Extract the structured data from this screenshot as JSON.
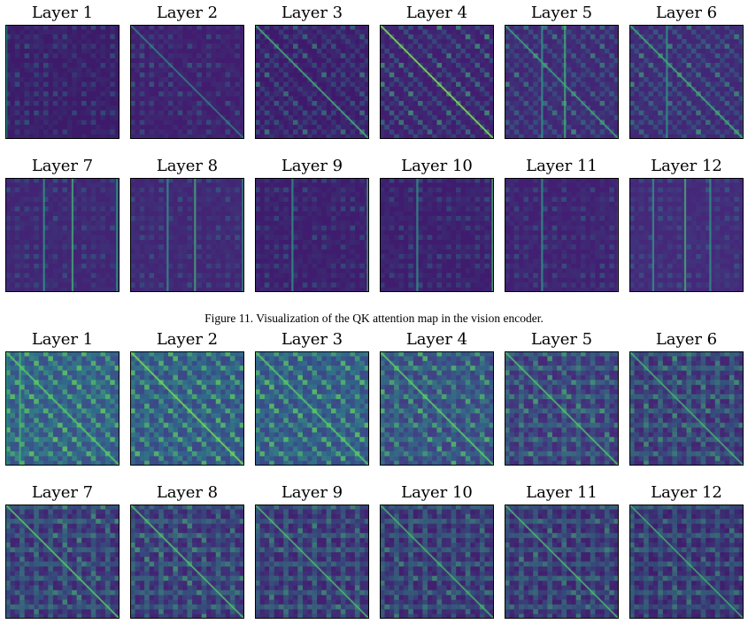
{
  "figure_top": {
    "rows": [
      [
        {
          "label": "Layer 1",
          "style": "speckle",
          "bg": "#3d1a6a",
          "diag": 0.0,
          "stripe": 0.05,
          "cols": [
            0.0
          ]
        },
        {
          "label": "Layer 2",
          "style": "speckle",
          "bg": "#421c6f",
          "diag": 0.25,
          "stripe": 0.1,
          "cols": []
        },
        {
          "label": "Layer 3",
          "style": "speckle",
          "bg": "#3f1a6c",
          "diag": 0.55,
          "stripe": 0.4,
          "cols": []
        },
        {
          "label": "Layer 4",
          "style": "speckle",
          "bg": "#421d70",
          "diag": 0.9,
          "stripe": 0.55,
          "cols": []
        },
        {
          "label": "Layer 5",
          "style": "speckle",
          "bg": "#432575",
          "diag": 0.45,
          "stripe": 0.5,
          "cols": [
            0.32,
            0.52
          ]
        },
        {
          "label": "Layer 6",
          "style": "speckle",
          "bg": "#432676",
          "diag": 0.5,
          "stripe": 0.55,
          "cols": [
            0.32,
            0.99
          ]
        }
      ],
      [
        {
          "label": "Layer 7",
          "style": "speckle",
          "bg": "#422374",
          "diag": 0.0,
          "stripe": 0.0,
          "cols": [
            0.33,
            0.58,
            0.97
          ]
        },
        {
          "label": "Layer 8",
          "style": "speckle",
          "bg": "#432475",
          "diag": 0.0,
          "stripe": 0.0,
          "cols": [
            0.32,
            0.56,
            0.98
          ]
        },
        {
          "label": "Layer 9",
          "style": "speckle",
          "bg": "#3f1c6e",
          "diag": 0.0,
          "stripe": 0.0,
          "cols": [
            0.32,
            0.98
          ]
        },
        {
          "label": "Layer 10",
          "style": "speckle",
          "bg": "#3f1c6e",
          "diag": 0.0,
          "stripe": 0.0,
          "cols": [
            0.32,
            0.98
          ]
        },
        {
          "label": "Layer 11",
          "style": "speckle",
          "bg": "#421f72",
          "diag": 0.0,
          "stripe": 0.0,
          "cols": [
            0.32,
            0.99
          ]
        },
        {
          "label": "Layer 12",
          "style": "speckle",
          "bg": "#46287a",
          "diag": 0.0,
          "stripe": 0.0,
          "cols": [
            0.2,
            0.48,
            0.7
          ]
        }
      ]
    ]
  },
  "caption": "Figure 11. Visualization of the QK attention map in the vision encoder.",
  "figure_bottom": {
    "rows": [
      [
        {
          "label": "Layer 1",
          "style": "block",
          "bg": "#3d4f8a",
          "diag": 0.7,
          "stripe": 0.6,
          "cols": [
            0.0,
            0.12
          ]
        },
        {
          "label": "Layer 2",
          "style": "block",
          "bg": "#3c4888",
          "diag": 0.85,
          "stripe": 0.55,
          "cols": []
        },
        {
          "label": "Layer 3",
          "style": "block",
          "bg": "#3c4989",
          "diag": 0.7,
          "stripe": 0.55,
          "cols": []
        },
        {
          "label": "Layer 4",
          "style": "block",
          "bg": "#433e84",
          "diag": 0.75,
          "stripe": 0.45,
          "cols": []
        },
        {
          "label": "Layer 5",
          "style": "block",
          "bg": "#472a7a",
          "diag": 0.65,
          "stripe": 0.3,
          "cols": []
        },
        {
          "label": "Layer 6",
          "style": "block",
          "bg": "#452674",
          "diag": 0.55,
          "stripe": 0.25,
          "cols": []
        }
      ],
      [
        {
          "label": "Layer 7",
          "style": "block",
          "bg": "#432473",
          "diag": 0.7,
          "stripe": 0.25,
          "cols": []
        },
        {
          "label": "Layer 8",
          "style": "block",
          "bg": "#432473",
          "diag": 0.65,
          "stripe": 0.25,
          "cols": []
        },
        {
          "label": "Layer 9",
          "style": "block",
          "bg": "#432171",
          "diag": 0.6,
          "stripe": 0.2,
          "cols": []
        },
        {
          "label": "Layer 10",
          "style": "block",
          "bg": "#42206f",
          "diag": 0.55,
          "stripe": 0.2,
          "cols": []
        },
        {
          "label": "Layer 11",
          "style": "block",
          "bg": "#42206f",
          "diag": 0.6,
          "stripe": 0.2,
          "cols": []
        },
        {
          "label": "Layer 12",
          "style": "block",
          "bg": "#411e6d",
          "diag": 0.5,
          "stripe": 0.15,
          "cols": []
        }
      ]
    ]
  },
  "colormap": [
    "#440154",
    "#3b528b",
    "#21918c",
    "#5ec962",
    "#fde725"
  ]
}
